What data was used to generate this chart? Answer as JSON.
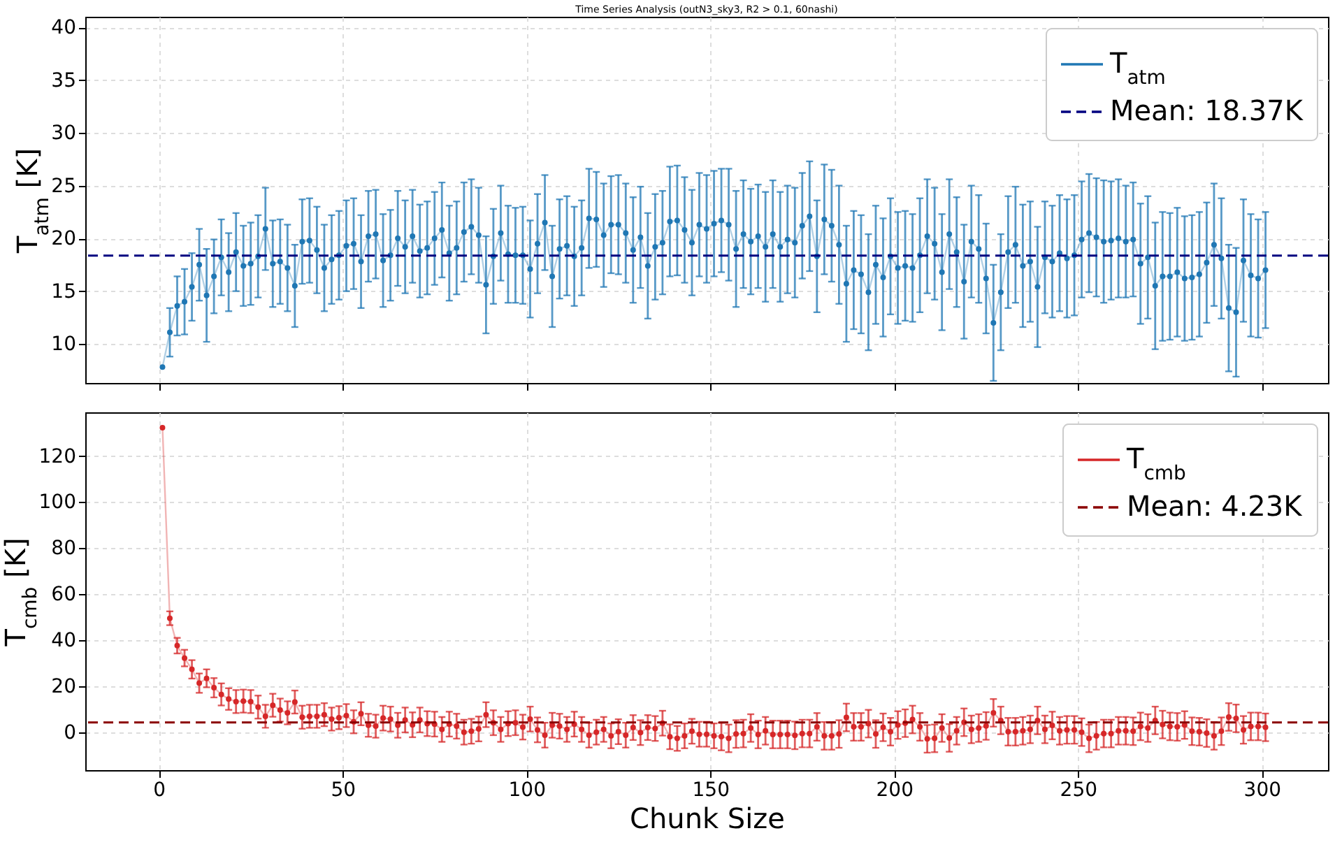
{
  "chart_data": [
    {
      "type": "line",
      "title": "Time Series Analysis (outN3_sky3, R2 > 0.1, 60nashi)",
      "ylabel": "T$_{atm}$ [K]",
      "tick_labels": "y",
      "grid": true,
      "legend": "top right",
      "marker": "circle",
      "xlim": [
        -20,
        318
      ],
      "xticks": [
        0,
        50,
        100,
        150,
        200,
        250,
        300
      ],
      "ylim": [
        6.3,
        41
      ],
      "yticks": [
        10,
        15,
        20,
        25,
        30,
        35,
        40
      ],
      "x": [
        1,
        3,
        5,
        7,
        9,
        11,
        13,
        15,
        17,
        19,
        21,
        23,
        25,
        27,
        29,
        31,
        33,
        35,
        37,
        39,
        41,
        43,
        45,
        47,
        49,
        51,
        53,
        55,
        57,
        59,
        61,
        63,
        65,
        67,
        69,
        71,
        73,
        75,
        77,
        79,
        81,
        83,
        85,
        87,
        89,
        91,
        93,
        95,
        97,
        99,
        101,
        103,
        105,
        107,
        109,
        111,
        113,
        115,
        117,
        119,
        121,
        123,
        125,
        127,
        129,
        131,
        133,
        135,
        137,
        139,
        141,
        143,
        145,
        147,
        149,
        151,
        153,
        155,
        157,
        159,
        161,
        163,
        165,
        167,
        169,
        171,
        173,
        175,
        177,
        179,
        181,
        183,
        185,
        187,
        189,
        191,
        193,
        195,
        197,
        199,
        201,
        203,
        205,
        207,
        209,
        211,
        213,
        215,
        217,
        219,
        221,
        223,
        225,
        227,
        229,
        231,
        233,
        235,
        237,
        239,
        241,
        243,
        245,
        247,
        249,
        251,
        253,
        255,
        257,
        259,
        261,
        263,
        265,
        267,
        269,
        271,
        273,
        275,
        277,
        279,
        281,
        283,
        285,
        287,
        289,
        291,
        293,
        295,
        297,
        299,
        301
      ],
      "series": [
        {
          "name": "T$_{atm}$",
          "color": "#1f77b4",
          "line_style": "solid",
          "values": [
            7.8,
            11.1,
            13.6,
            14.0,
            15.4,
            17.5,
            14.6,
            16.4,
            18.2,
            16.8,
            18.7,
            17.4,
            17.6,
            18.3,
            20.9,
            17.6,
            17.8,
            17.2,
            15.5,
            19.7,
            19.8,
            18.9,
            17.2,
            18.0,
            18.4,
            19.3,
            19.5,
            17.8,
            20.2,
            20.4,
            17.9,
            18.4,
            20.0,
            19.2,
            20.2,
            18.8,
            19.1,
            20.0,
            20.8,
            18.6,
            19.1,
            20.6,
            21.1,
            20.3,
            15.6,
            18.3,
            20.5,
            18.5,
            18.4,
            18.4,
            17.1,
            19.5,
            21.5,
            16.4,
            19.0,
            19.3,
            18.3,
            19.1,
            21.9,
            21.8,
            20.3,
            21.3,
            21.3,
            20.5,
            18.9,
            20.1,
            17.4,
            19.2,
            19.6,
            21.6,
            21.7,
            20.8,
            19.6,
            21.3,
            20.9,
            21.4,
            21.7,
            21.3,
            19.0,
            20.4,
            19.7,
            20.2,
            19.2,
            20.4,
            19.2,
            19.9,
            19.6,
            21.2,
            22.1,
            18.3,
            21.8,
            21.2,
            19.4,
            15.7,
            17.0,
            16.6,
            14.9,
            17.5,
            16.3,
            18.3,
            17.2,
            17.4,
            17.2,
            18.4,
            20.2,
            19.5,
            16.8,
            20.4,
            18.7,
            15.9,
            19.7,
            19.0,
            16.2,
            12.0,
            14.9,
            18.7,
            19.4,
            17.4,
            17.8,
            15.4,
            18.2,
            17.8,
            18.6,
            18.1,
            18.4,
            19.9,
            20.5,
            20.1,
            19.7,
            19.8,
            20.0,
            19.7,
            19.9,
            17.6,
            18.2,
            15.5,
            16.4,
            16.4,
            16.8,
            16.2,
            16.3,
            16.6,
            17.7,
            19.4,
            18.1,
            13.4,
            13.0,
            17.9,
            16.5,
            16.2,
            17.0
          ],
          "errors": [
            null,
            2.3,
            2.8,
            3.1,
            3.2,
            3.4,
            4.4,
            3.5,
            3.6,
            3.7,
            3.7,
            3.8,
            3.9,
            3.9,
            3.9,
            4.1,
            4.0,
            4.1,
            3.9,
            4.0,
            4.0,
            4.1,
            4.1,
            4.2,
            4.2,
            4.3,
            4.3,
            4.4,
            4.3,
            4.2,
            4.4,
            4.3,
            4.5,
            4.4,
            4.4,
            4.4,
            4.4,
            4.4,
            4.5,
            4.5,
            4.4,
            4.7,
            4.5,
            4.5,
            4.6,
            4.5,
            4.5,
            4.6,
            4.5,
            4.6,
            4.6,
            4.7,
            4.5,
            4.8,
            4.7,
            4.7,
            4.7,
            4.5,
            4.7,
            4.5,
            4.9,
            4.6,
            4.7,
            4.7,
            5.0,
            4.8,
            5.0,
            5.0,
            4.9,
            5.2,
            5.2,
            5.0,
            5.0,
            4.9,
            5.1,
            5.0,
            4.9,
            5.3,
            5.5,
            5.1,
            5.0,
            4.9,
            5.2,
            5.1,
            5.2,
            5.1,
            5.2,
            5.0,
            5.2,
            5.3,
            5.2,
            5.3,
            5.6,
            5.5,
            5.6,
            5.6,
            5.5,
            5.6,
            5.6,
            5.5,
            5.3,
            5.2,
            5.1,
            5.4,
            5.4,
            5.3,
            5.5,
            5.2,
            5.2,
            5.4,
            5.3,
            5.1,
            5.2,
            5.5,
            5.5,
            5.3,
            5.5,
            5.8,
            5.7,
            5.7,
            5.3,
            5.3,
            5.5,
            5.6,
            5.7,
            5.5,
            5.6,
            5.6,
            5.8,
            5.6,
            5.6,
            5.3,
            5.4,
            5.7,
            5.8,
            6.0,
            6.1,
            6.0,
            6.1,
            5.9,
            5.9,
            5.9,
            5.7,
            5.8,
            5.7,
            6.0,
            6.1,
            5.8,
            5.8,
            5.6,
            5.5
          ]
        }
      ],
      "ref_lines": [
        {
          "axis": "y",
          "value": 18.37,
          "label": "Mean: 18.37K",
          "color": "#000080",
          "line_style": "dashed"
        }
      ]
    },
    {
      "type": "line",
      "xlabel": "Chunk Size",
      "ylabel": "T$_{cmb}$ [K]",
      "grid": true,
      "legend": "top right",
      "marker": "circle",
      "xlim": [
        -20,
        318
      ],
      "xticks": [
        0,
        50,
        100,
        150,
        200,
        250,
        300
      ],
      "ylim": [
        -16.5,
        139
      ],
      "yticks": [
        0,
        20,
        40,
        60,
        80,
        100,
        120
      ],
      "x": [
        1,
        3,
        5,
        7,
        9,
        11,
        13,
        15,
        17,
        19,
        21,
        23,
        25,
        27,
        29,
        31,
        33,
        35,
        37,
        39,
        41,
        43,
        45,
        47,
        49,
        51,
        53,
        55,
        57,
        59,
        61,
        63,
        65,
        67,
        69,
        71,
        73,
        75,
        77,
        79,
        81,
        83,
        85,
        87,
        89,
        91,
        93,
        95,
        97,
        99,
        101,
        103,
        105,
        107,
        109,
        111,
        113,
        115,
        117,
        119,
        121,
        123,
        125,
        127,
        129,
        131,
        133,
        135,
        137,
        139,
        141,
        143,
        145,
        147,
        149,
        151,
        153,
        155,
        157,
        159,
        161,
        163,
        165,
        167,
        169,
        171,
        173,
        175,
        177,
        179,
        181,
        183,
        185,
        187,
        189,
        191,
        193,
        195,
        197,
        199,
        201,
        203,
        205,
        207,
        209,
        211,
        213,
        215,
        217,
        219,
        221,
        223,
        225,
        227,
        229,
        231,
        233,
        235,
        237,
        239,
        241,
        243,
        245,
        247,
        249,
        251,
        253,
        255,
        257,
        259,
        261,
        263,
        265,
        267,
        269,
        271,
        273,
        275,
        277,
        279,
        281,
        283,
        285,
        287,
        289,
        291,
        293,
        295,
        297,
        299,
        301
      ],
      "series": [
        {
          "name": "T$_{cmb}$",
          "color": "#d62728",
          "line_style": "solid",
          "values": [
            132.3,
            49.5,
            37.6,
            32.2,
            27.3,
            21.3,
            23.4,
            19.3,
            16.4,
            14.4,
            13.3,
            13.5,
            13.3,
            10.9,
            6.9,
            11.7,
            9.6,
            8.4,
            13.1,
            6.5,
            6.9,
            6.9,
            7.6,
            5.7,
            6.3,
            7.2,
            4.5,
            8.0,
            3.0,
            2.6,
            6.1,
            5.7,
            3.0,
            5.3,
            3.2,
            5.3,
            3.7,
            3.5,
            1.2,
            3.5,
            2.6,
            0.0,
            0.4,
            1.4,
            7.6,
            4.1,
            1.2,
            3.7,
            4.1,
            2.2,
            5.7,
            1.0,
            -1.3,
            3.0,
            2.6,
            1.2,
            3.5,
            1.2,
            -1.3,
            0.0,
            1.2,
            -1.6,
            0.2,
            -1.3,
            2.0,
            -0.2,
            2.0,
            1.6,
            3.9,
            -2.0,
            -2.7,
            -1.6,
            0.4,
            -0.9,
            -0.9,
            -1.6,
            -1.9,
            -2.7,
            -0.8,
            -0.6,
            1.8,
            -1.0,
            0.6,
            -1.0,
            -1.0,
            -1.0,
            -1.4,
            -0.6,
            -0.6,
            2.3,
            -1.6,
            -1.6,
            -0.8,
            6.4,
            2.3,
            2.3,
            3.7,
            -0.8,
            2.1,
            0.2,
            3.1,
            3.9,
            5.5,
            2.3,
            -2.9,
            -2.7,
            1.8,
            -2.5,
            0.6,
            4.3,
            1.2,
            1.8,
            2.7,
            8.4,
            5.1,
            0.2,
            0.2,
            0.6,
            1.2,
            5.1,
            1.2,
            2.9,
            0.6,
            1.0,
            1.0,
            0.0,
            -2.7,
            -1.6,
            -0.6,
            -0.6,
            0.6,
            0.6,
            0.4,
            2.5,
            1.8,
            5.1,
            3.3,
            2.5,
            2.3,
            3.1,
            0.4,
            0.2,
            -0.4,
            -1.6,
            0.4,
            6.6,
            6.0,
            1.0,
            2.5,
            2.5,
            2.1
          ],
          "errors": [
            null,
            3.0,
            3.4,
            3.6,
            4.0,
            4.2,
            3.9,
            4.2,
            4.8,
            4.7,
            5.0,
            5.0,
            5.0,
            5.0,
            5.0,
            5.0,
            5.0,
            5.0,
            5.0,
            5.0,
            5.0,
            5.0,
            5.0,
            5.0,
            5.0,
            5.0,
            5.0,
            5.0,
            5.0,
            5.0,
            5.4,
            5.4,
            5.4,
            5.4,
            5.4,
            5.4,
            5.4,
            5.4,
            5.4,
            5.4,
            5.4,
            5.4,
            5.4,
            5.4,
            5.4,
            5.4,
            5.4,
            5.4,
            5.4,
            5.4,
            5.4,
            5.4,
            5.4,
            5.4,
            5.4,
            5.4,
            5.4,
            5.4,
            5.4,
            5.4,
            5.4,
            5.4,
            5.4,
            5.4,
            5.4,
            5.4,
            5.4,
            5.4,
            5.4,
            5.4,
            5.4,
            5.4,
            5.4,
            5.4,
            5.4,
            5.4,
            6.0,
            6.0,
            6.0,
            6.0,
            6.0,
            6.0,
            6.0,
            6.0,
            6.0,
            6.0,
            6.0,
            6.0,
            6.0,
            6.0,
            6.0,
            6.0,
            6.0,
            6.0,
            6.0,
            6.0,
            6.0,
            6.0,
            6.0,
            6.0,
            6.0,
            6.0,
            6.0,
            6.0,
            6.0,
            6.0,
            6.0,
            6.0,
            6.0,
            6.0,
            6.0,
            6.0,
            6.0,
            6.0,
            6.0,
            6.0,
            6.0,
            6.0,
            6.0,
            6.0,
            6.0,
            6.0,
            6.0,
            6.0,
            6.0,
            6.0,
            6.0,
            6.0,
            6.0,
            6.0,
            6.0,
            6.0,
            6.0,
            6.0,
            6.0,
            6.0,
            6.0,
            6.0,
            6.0,
            6.0,
            6.0,
            6.0,
            6.0,
            6.0,
            6.0,
            6.0,
            6.0,
            6.0,
            6.0,
            6.0,
            6.0
          ]
        }
      ],
      "ref_lines": [
        {
          "axis": "y",
          "value": 4.23,
          "label": "Mean: 4.23K",
          "color": "#8b0000",
          "line_style": "dashed"
        }
      ]
    }
  ]
}
